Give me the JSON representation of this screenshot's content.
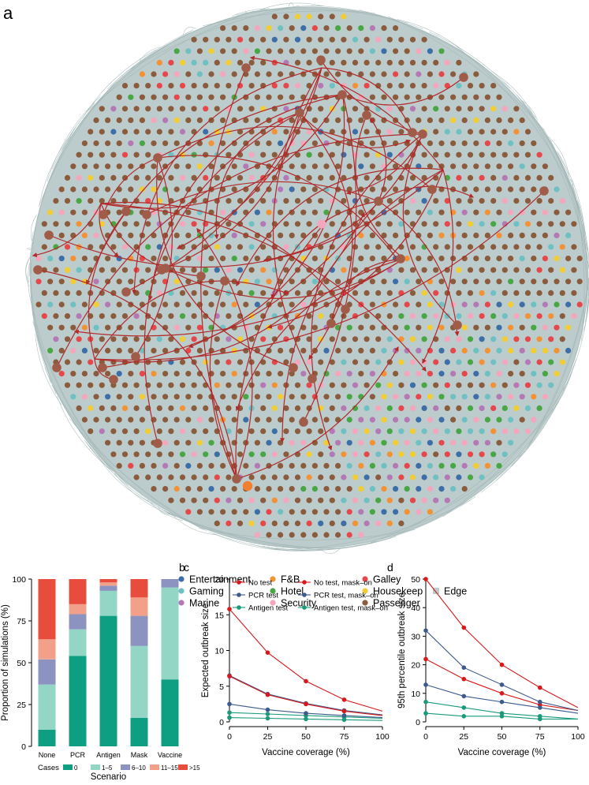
{
  "panel_a": {
    "letter": "a",
    "colors": {
      "edge": "#bccbcb",
      "arrow": "#b22a2a",
      "Entertainment": "#3e6ea7",
      "Gaming": "#6fc0c3",
      "Marine": "#b479b4",
      "F&B": "#f39235",
      "Hotel": "#49a644",
      "Security": "#f5a6bc",
      "Galley": "#e5474a",
      "Housekeep": "#f2cc33",
      "Passenger": "#8b5b3e"
    },
    "legend": [
      {
        "label": "Entertainment",
        "color": "#3e6ea7",
        "shape": "circle"
      },
      {
        "label": "Gaming",
        "color": "#6fc0c3",
        "shape": "circle"
      },
      {
        "label": "Marine",
        "color": "#b479b4",
        "shape": "circle"
      },
      {
        "label": "F&B",
        "color": "#f39235",
        "shape": "circle"
      },
      {
        "label": "Hotel",
        "color": "#49a644",
        "shape": "circle"
      },
      {
        "label": "Security",
        "color": "#f5a6bc",
        "shape": "circle"
      },
      {
        "label": "Galley",
        "color": "#e5474a",
        "shape": "circle"
      },
      {
        "label": "Housekeep",
        "color": "#f2cc33",
        "shape": "circle"
      },
      {
        "label": "Passenger",
        "color": "#8b5b3e",
        "shape": "circle"
      },
      {
        "label": "Edge",
        "color": "#bccbcb",
        "shape": "square"
      }
    ]
  },
  "chart_data": [
    {
      "type": "bar",
      "panel": "b",
      "stacked": true,
      "ylabel": "Proportion of simulations (%)",
      "xlabel": "Scenario",
      "categories": [
        "None",
        "PCR",
        "Antigen",
        "Mask",
        "Vaccine"
      ],
      "ylim": [
        0,
        100
      ],
      "yticks": [
        0,
        25,
        50,
        75,
        100
      ],
      "legend_title": "Cases",
      "series": [
        {
          "name": "0",
          "color": "#0e9e82",
          "values": [
            10,
            54,
            78,
            17,
            40
          ]
        },
        {
          "name": "1–5",
          "color": "#94d6c6",
          "values": [
            27,
            16,
            15,
            43,
            55
          ]
        },
        {
          "name": "6–10",
          "color": "#8c93c0",
          "values": [
            15,
            9,
            3,
            18,
            5
          ]
        },
        {
          "name": "11–15",
          "color": "#f2a08a",
          "values": [
            12,
            6,
            2,
            11,
            0
          ]
        },
        {
          "name": ">15",
          "color": "#e74c3c",
          "values": [
            36,
            15,
            2,
            11,
            0
          ]
        }
      ]
    },
    {
      "type": "line",
      "panel": "c",
      "ylabel": "Expected outbreak size",
      "xlabel": "Vaccine coverage (%)",
      "x": [
        0,
        25,
        50,
        75,
        100
      ],
      "xlim": [
        0,
        100
      ],
      "ylim": [
        0,
        20
      ],
      "xticks": [
        0,
        25,
        50,
        75,
        100
      ],
      "yticks": [
        0,
        5,
        10,
        15,
        20
      ],
      "series": [
        {
          "name": "No test",
          "color": "#d7191c",
          "values": [
            15.8,
            9.7,
            5.7,
            3.1,
            1.5
          ]
        },
        {
          "name": "PCR test",
          "color": "#3d5a8c",
          "values": [
            6.5,
            3.9,
            2.6,
            1.6,
            1.0
          ]
        },
        {
          "name": "Antigen test",
          "color": "#1a9a7a",
          "values": [
            1.3,
            1.1,
            0.9,
            0.7,
            0.5
          ]
        },
        {
          "name": "No test, mask–on",
          "color": "#d7191c",
          "values": [
            6.4,
            3.8,
            2.5,
            1.5,
            0.9
          ]
        },
        {
          "name": "PCR test, mask–on",
          "color": "#3d5a8c",
          "values": [
            2.5,
            1.7,
            1.2,
            0.9,
            0.6
          ]
        },
        {
          "name": "Antigen test, mask–on",
          "color": "#1a9a7a",
          "values": [
            0.6,
            0.5,
            0.4,
            0.3,
            0.2
          ]
        }
      ]
    },
    {
      "type": "line",
      "panel": "d",
      "ylabel": "95th percentile outbreak size",
      "xlabel": "Vaccine coverage (%)",
      "x": [
        0,
        25,
        50,
        75,
        100
      ],
      "xlim": [
        0,
        100
      ],
      "ylim": [
        0,
        50
      ],
      "xticks": [
        0,
        25,
        50,
        75,
        100
      ],
      "yticks": [
        0,
        10,
        20,
        30,
        40,
        50
      ],
      "series": [
        {
          "name": "No test",
          "color": "#d7191c",
          "values": [
            50,
            33,
            20,
            12,
            5
          ]
        },
        {
          "name": "No test, mask–on",
          "color": "#d7191c",
          "values": [
            22,
            15,
            10,
            6,
            4
          ]
        },
        {
          "name": "PCR test",
          "color": "#3d5a8c",
          "values": [
            32,
            19,
            13,
            7,
            4
          ]
        },
        {
          "name": "PCR test, mask–on",
          "color": "#3d5a8c",
          "values": [
            13,
            9,
            7,
            5,
            3
          ]
        },
        {
          "name": "Antigen test",
          "color": "#1a9a7a",
          "values": [
            7,
            5,
            3,
            2,
            1
          ]
        },
        {
          "name": "Antigen test, mask–on",
          "color": "#1a9a7a",
          "values": [
            3,
            2,
            2,
            1,
            1
          ]
        }
      ]
    }
  ],
  "labels": {
    "b": "b",
    "c": "c",
    "d": "d"
  }
}
